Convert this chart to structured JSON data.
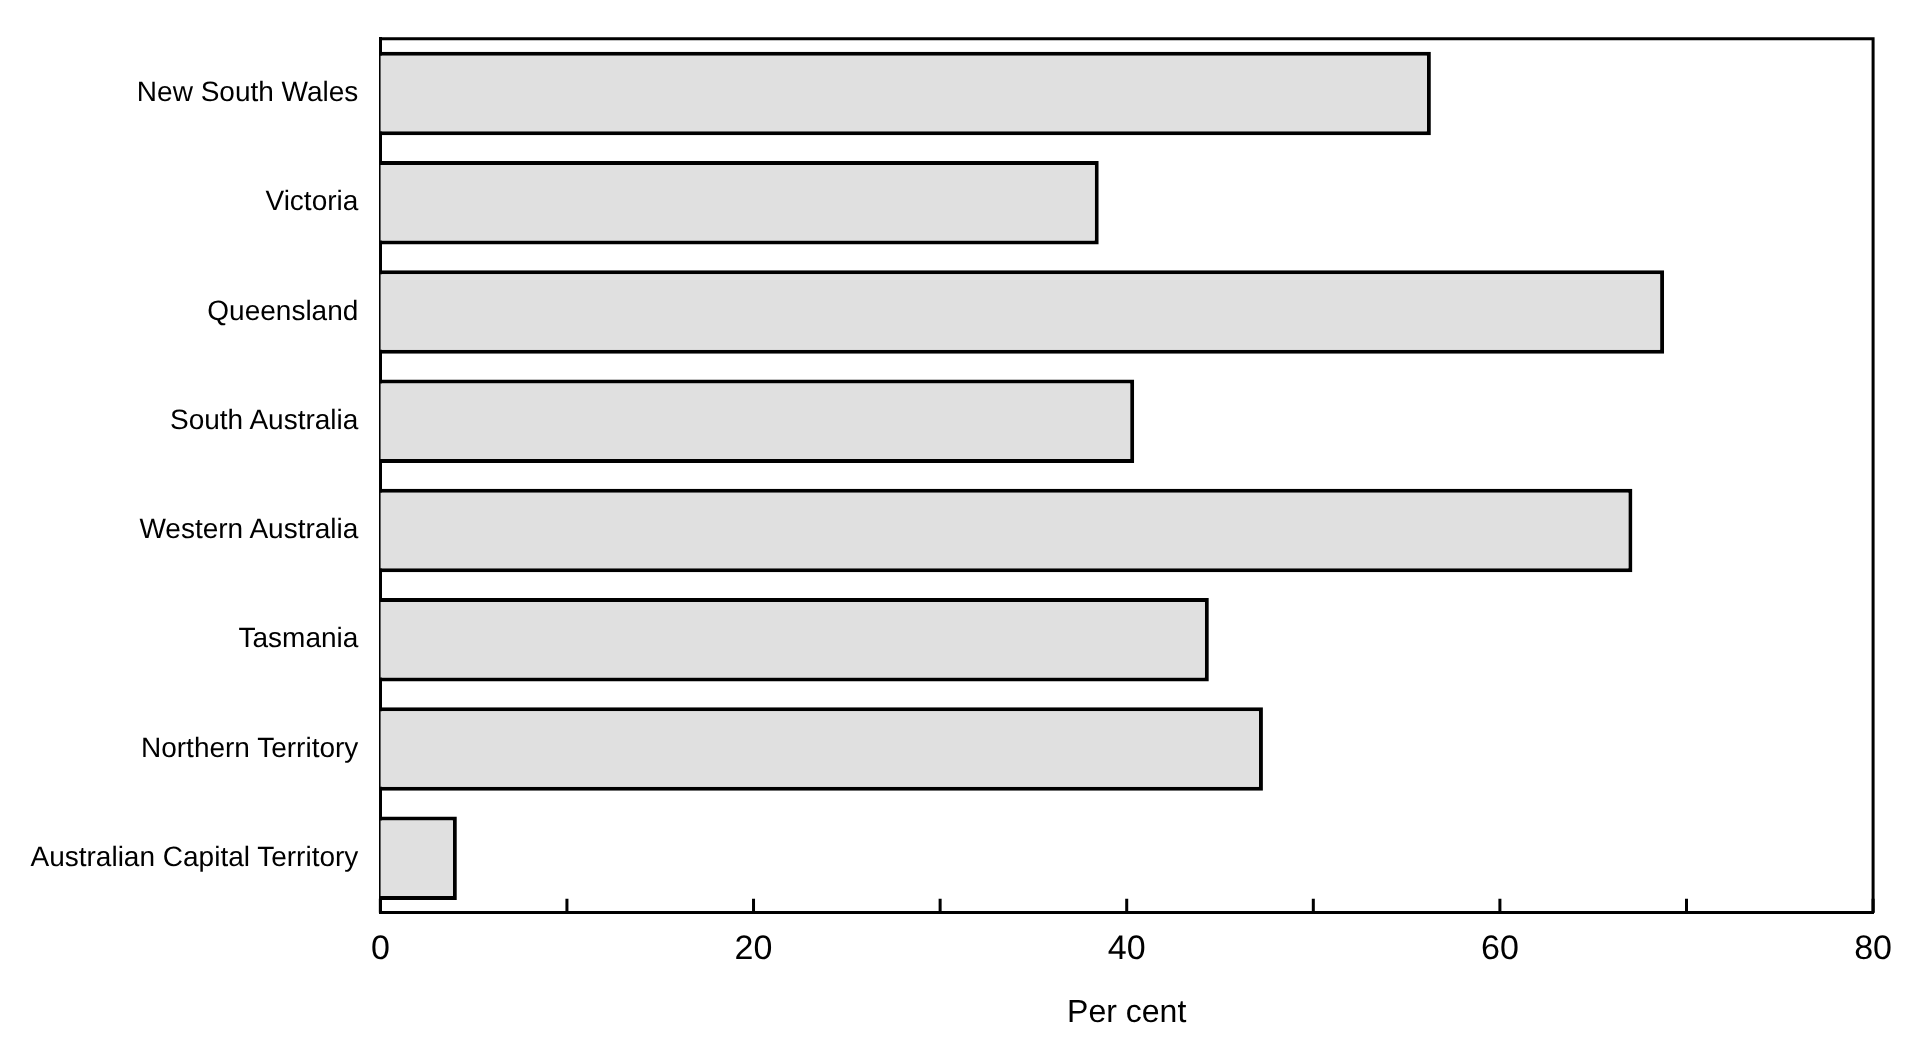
{
  "chart_data": {
    "type": "bar",
    "orientation": "horizontal",
    "xlabel": "Per cent",
    "categories": [
      "New South Wales",
      "Victoria",
      "Queensland",
      "South Australia",
      "Western Australia",
      "Tasmania",
      "Northern Territory",
      "Australian Capital Territory"
    ],
    "values": [
      56.3,
      38.5,
      68.8,
      40.4,
      67.1,
      44.4,
      47.3,
      4.1
    ],
    "color": "#e0e0e0",
    "xlim": [
      0,
      80
    ],
    "xticks": [
      0,
      {
        "value": 10,
        "label": null
      },
      20,
      {
        "value": 30,
        "label": null
      },
      40,
      {
        "value": 50,
        "label": null
      },
      60,
      {
        "value": 70,
        "label": null
      },
      80
    ],
    "grid": false,
    "legend": false
  }
}
